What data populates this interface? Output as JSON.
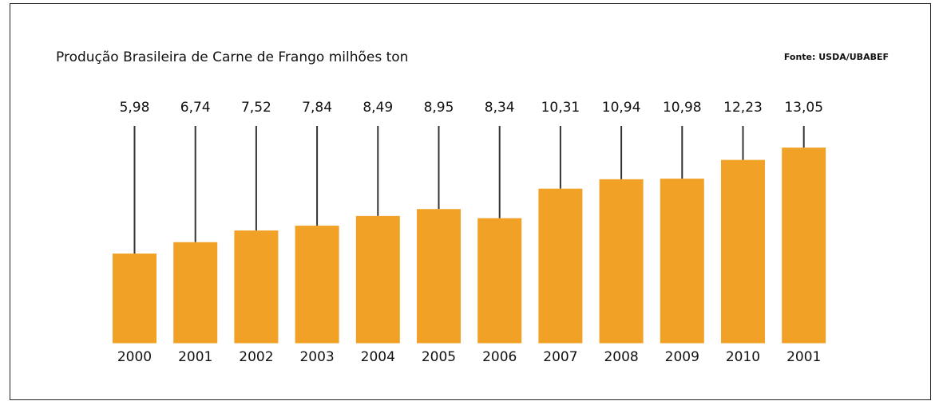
{
  "chart_data": {
    "type": "bar",
    "title": "Produção Brasileira de Carne de Frango milhões ton",
    "source": "Fonte: USDA/UBABEF",
    "categories": [
      "2000",
      "2001",
      "2002",
      "2003",
      "2004",
      "2005",
      "2006",
      "2007",
      "2008",
      "2009",
      "2010",
      "2001"
    ],
    "values": [
      5.98,
      6.74,
      7.52,
      7.84,
      8.49,
      8.95,
      8.34,
      10.31,
      10.94,
      10.98,
      12.23,
      13.05
    ],
    "value_labels": [
      "5,98",
      "6,74",
      "7,52",
      "7,84",
      "8,49",
      "8,95",
      "8,34",
      "10,31",
      "10,94",
      "10,98",
      "12,23",
      "13,05"
    ],
    "color": "#f0a126"
  }
}
